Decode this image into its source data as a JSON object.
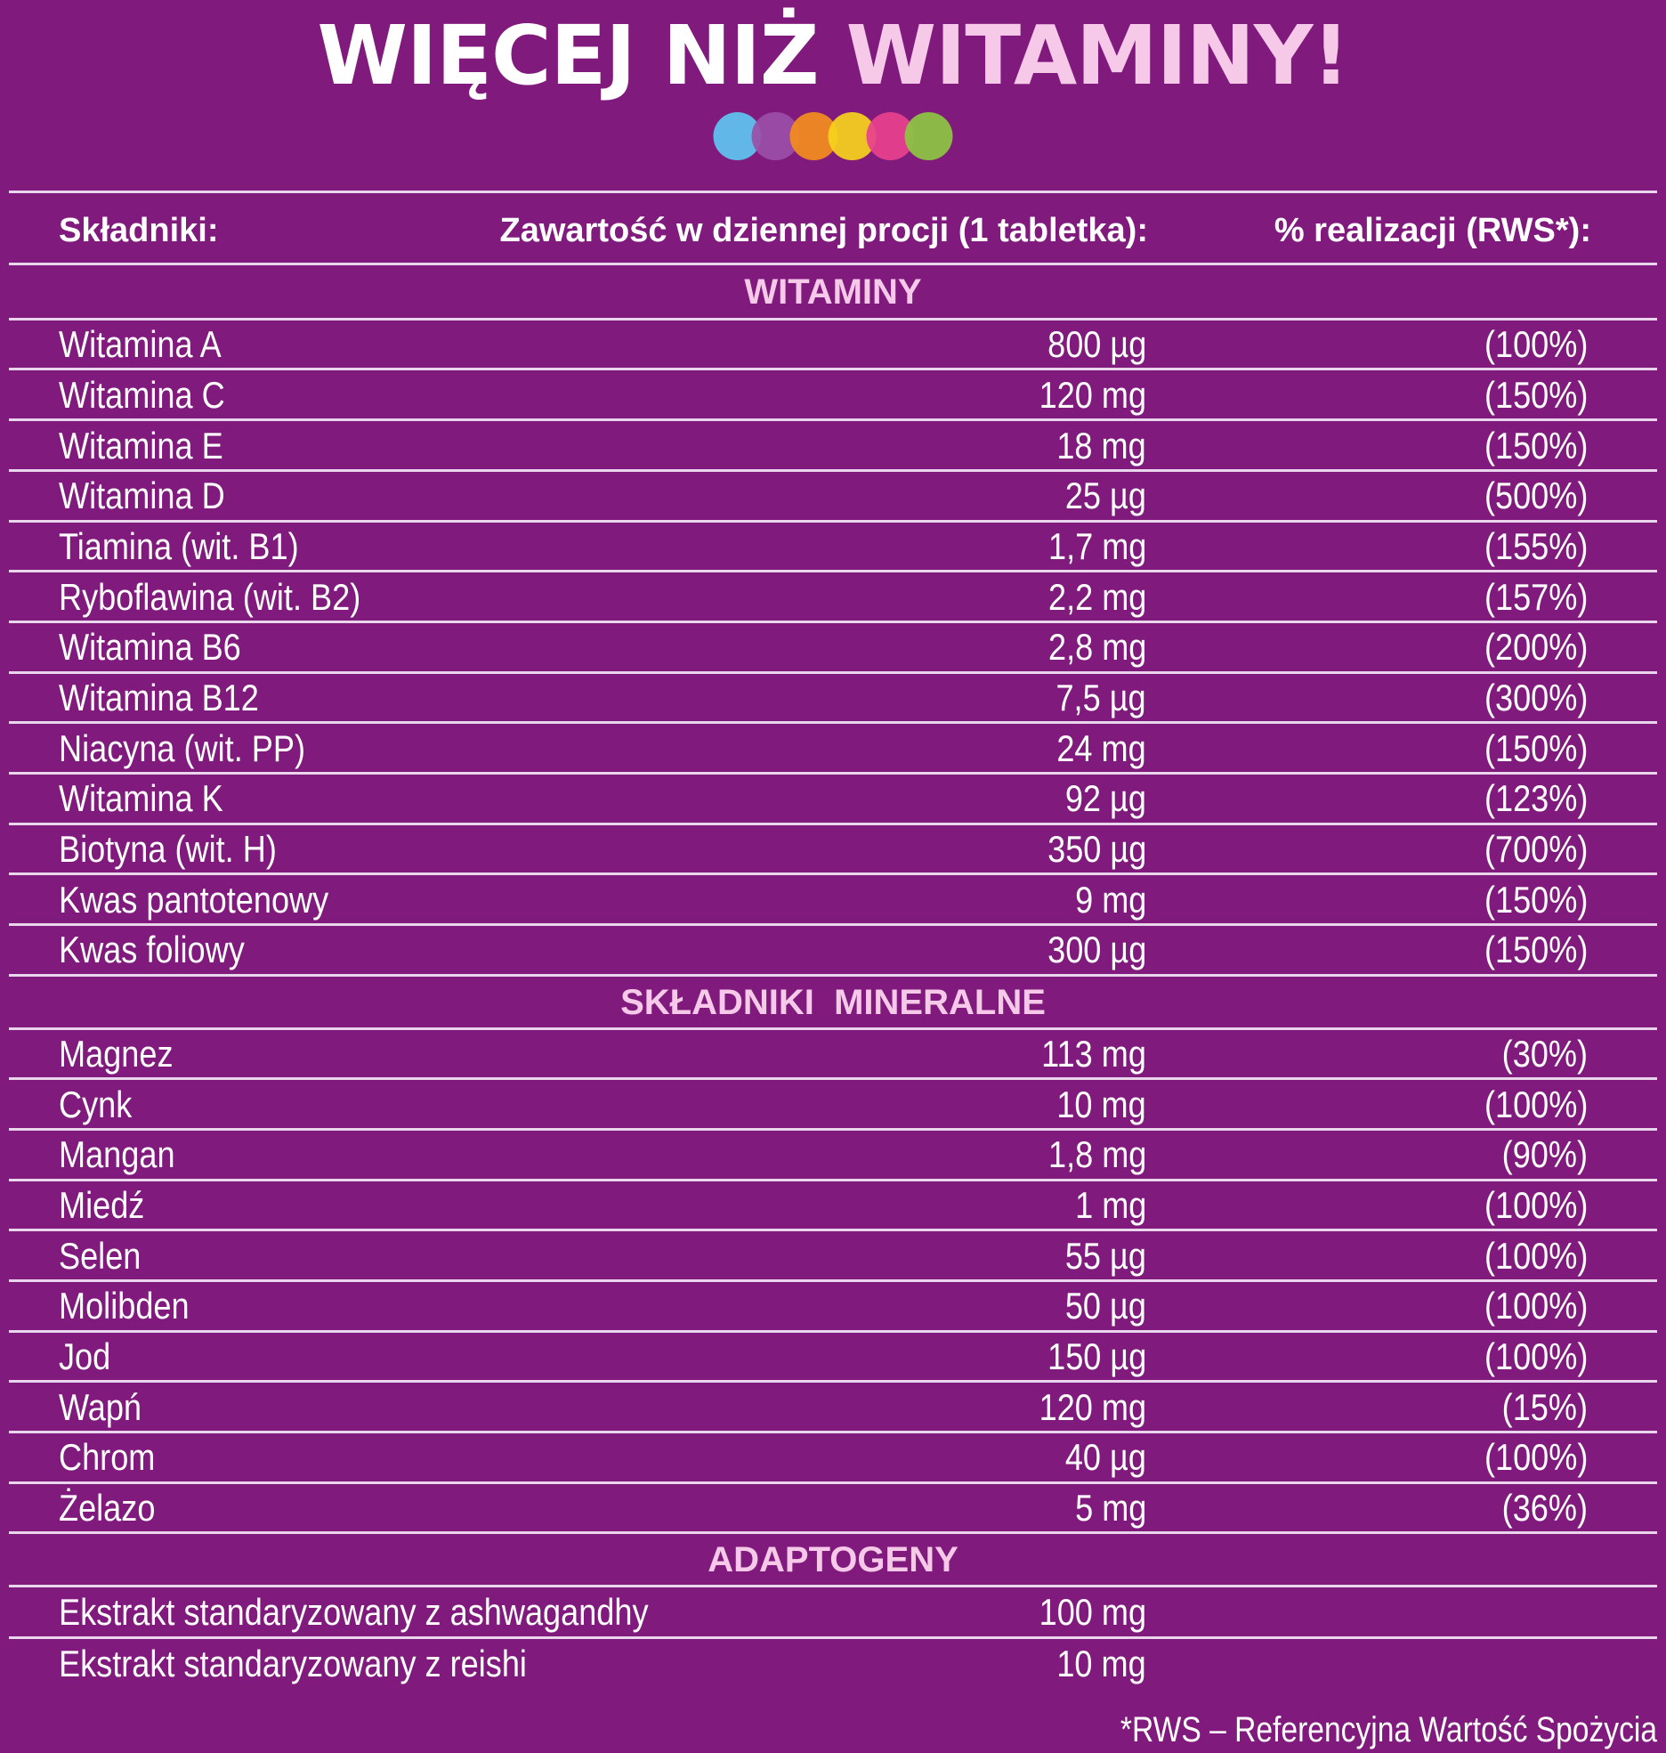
{
  "title": {
    "part1": "WIĘCEJ NIŻ ",
    "part2": "WITAMINY!"
  },
  "dot_colors": [
    "#5ec4f0",
    "#9b4ea8",
    "#f38d1d",
    "#f6d21c",
    "#e8408e",
    "#8cc541"
  ],
  "colors": {
    "background": "#801b7d",
    "section_title": "#f6c9e9",
    "line": "#e9d6ec"
  },
  "table_header": {
    "name": "Składniki:",
    "amount": "Zawartość w dziennej procji (1 tabletka):",
    "pct": "% realizacji (RWS*):"
  },
  "sections": [
    {
      "title": "WITAMINY",
      "rows": [
        {
          "name": "Witamina A",
          "amount": "800 µg",
          "pct": "(100%)"
        },
        {
          "name": "Witamina C",
          "amount": "120 mg",
          "pct": "(150%)"
        },
        {
          "name": "Witamina E",
          "amount": "18 mg",
          "pct": "(150%)"
        },
        {
          "name": "Witamina D",
          "amount": "25 µg",
          "pct": "(500%)"
        },
        {
          "name": "Tiamina (wit. B1)",
          "amount": "1,7 mg",
          "pct": "(155%)"
        },
        {
          "name": "Ryboflawina (wit. B2)",
          "amount": "2,2 mg",
          "pct": "(157%)"
        },
        {
          "name": "Witamina B6",
          "amount": "2,8 mg",
          "pct": "(200%)"
        },
        {
          "name": "Witamina B12",
          "amount": "7,5 µg",
          "pct": "(300%)"
        },
        {
          "name": "Niacyna (wit. PP)",
          "amount": "24 mg",
          "pct": "(150%)"
        },
        {
          "name": "Witamina K",
          "amount": "92 µg",
          "pct": "(123%)"
        },
        {
          "name": "Biotyna (wit. H)",
          "amount": "350 µg",
          "pct": "(700%)"
        },
        {
          "name": "Kwas pantotenowy",
          "amount": "9 mg",
          "pct": "(150%)"
        },
        {
          "name": "Kwas foliowy",
          "amount": "300 µg",
          "pct": "(150%)"
        }
      ]
    },
    {
      "title": "SKŁADNIKI  MINERALNE",
      "rows": [
        {
          "name": "Magnez",
          "amount": "113 mg",
          "pct": "(30%)"
        },
        {
          "name": "Cynk",
          "amount": "10 mg",
          "pct": "(100%)"
        },
        {
          "name": "Mangan",
          "amount": "1,8 mg",
          "pct": "(90%)"
        },
        {
          "name": "Miedź",
          "amount": "1 mg",
          "pct": "(100%)"
        },
        {
          "name": "Selen",
          "amount": "55 µg",
          "pct": "(100%)"
        },
        {
          "name": "Molibden",
          "amount": "50 µg",
          "pct": "(100%)"
        },
        {
          "name": "Jod",
          "amount": "150 µg",
          "pct": "(100%)"
        },
        {
          "name": "Wapń",
          "amount": "120 mg",
          "pct": "(15%)"
        },
        {
          "name": "Chrom",
          "amount": "40 µg",
          "pct": "(100%)"
        },
        {
          "name": "Żelazo",
          "amount": "5 mg",
          "pct": "(36%)"
        }
      ]
    },
    {
      "title": "ADAPTOGENY",
      "rows": [
        {
          "name": "Ekstrakt standaryzowany z ashwagandhy",
          "amount": "100 mg",
          "pct": ""
        },
        {
          "name": "Ekstrakt standaryzowany z reishi",
          "amount": "10 mg",
          "pct": ""
        }
      ]
    }
  ],
  "footnote": "*RWS – Referencyjna Wartość Spożycia"
}
